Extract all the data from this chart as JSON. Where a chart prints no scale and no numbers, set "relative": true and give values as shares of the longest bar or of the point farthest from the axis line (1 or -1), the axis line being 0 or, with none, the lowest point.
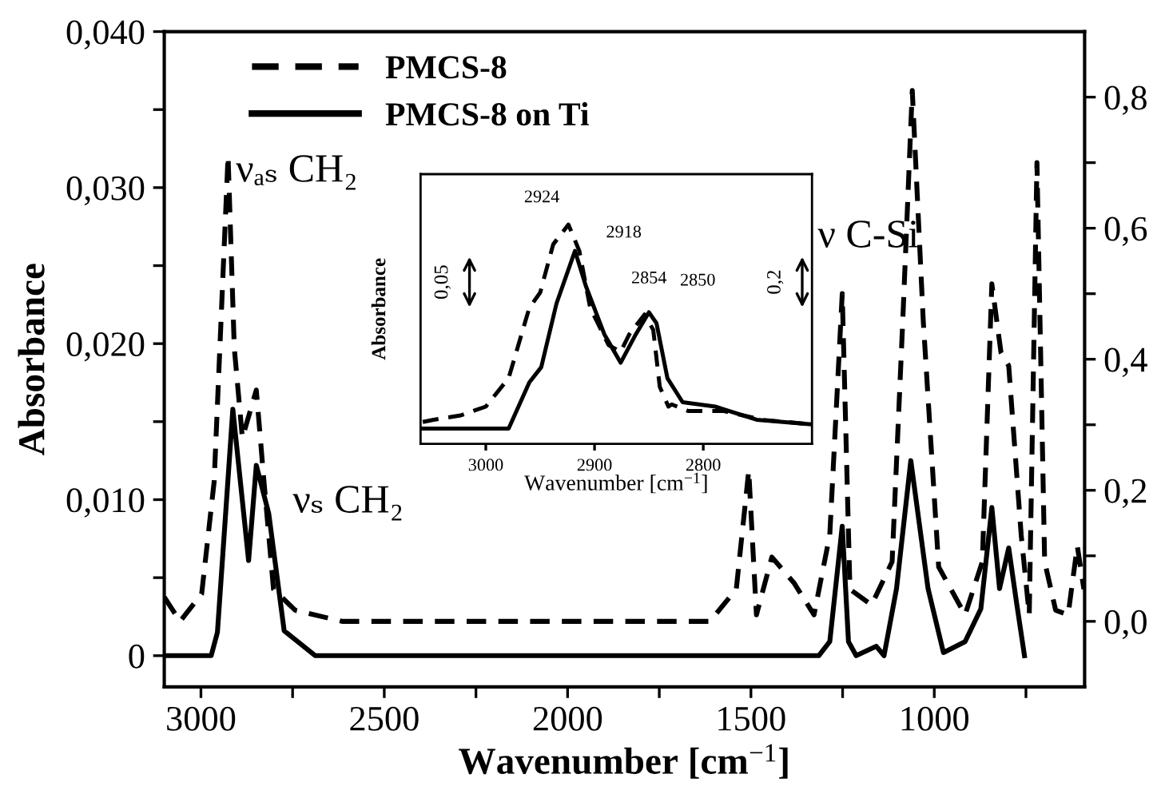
{
  "chart_data": [
    {
      "type": "line",
      "xlabel": "Wavenumber [cm$^{−1}$]",
      "ylabel": "Absorbance",
      "legend": "top left",
      "grid": false,
      "xlim": [
        3100,
        590
      ],
      "xticks": [
        {
          "value": 3000,
          "label": "3000"
        },
        {
          "value": 2750,
          "label": null
        },
        {
          "value": 2500,
          "label": "2500"
        },
        {
          "value": 2250,
          "label": null
        },
        {
          "value": 2000,
          "label": "2000"
        },
        {
          "value": 1750,
          "label": null
        },
        {
          "value": 1500,
          "label": "1500"
        },
        {
          "value": 1250,
          "label": null
        },
        {
          "value": 1000,
          "label": "1000"
        },
        {
          "value": 750,
          "label": null
        }
      ],
      "ylim": [
        -0.002,
        0.04
      ],
      "yticks": [
        {
          "value": 0,
          "label": "0"
        },
        {
          "value": 0.005,
          "label": null
        },
        {
          "value": 0.01,
          "label": "0,010"
        },
        {
          "value": 0.015,
          "label": null
        },
        {
          "value": 0.02,
          "label": "0,020"
        },
        {
          "value": 0.025,
          "label": null
        },
        {
          "value": 0.03,
          "label": "0,030"
        },
        {
          "value": 0.035,
          "label": null
        },
        {
          "value": 0.04,
          "label": "0,040"
        }
      ],
      "y2lim": [
        -0.1,
        0.9
      ],
      "y2ticks": [
        {
          "value": 0.0,
          "label": "0,0"
        },
        {
          "value": 0.1,
          "label": null
        },
        {
          "value": 0.2,
          "label": "0,2"
        },
        {
          "value": 0.3,
          "label": null
        },
        {
          "value": 0.4,
          "label": "0,4"
        },
        {
          "value": 0.5,
          "label": null
        },
        {
          "value": 0.6,
          "label": "0,6"
        },
        {
          "value": 0.7,
          "label": null
        },
        {
          "value": 0.8,
          "label": "0,8"
        }
      ],
      "annotations": [
        "νₐₛ CH₂",
        "νₛ CH₂",
        "ν C-Si"
      ],
      "series": [
        {
          "name": "PMCS-8",
          "color": "#000000",
          "line_style": "dashed",
          "axis": "y2",
          "x": [
            3100,
            3057,
            2998,
            2964,
            2926,
            2909,
            2887,
            2849,
            2828,
            2802,
            2743,
            2615,
            1612,
            1540,
            1506,
            1485,
            1443,
            1383,
            1328,
            1285,
            1251,
            1230,
            1171,
            1115,
            1086,
            1060,
            1030,
            988,
            916,
            869,
            843,
            818,
            797,
            763,
            741,
            720,
            699,
            669,
            635,
            610,
            592
          ],
          "values": [
            0.037,
            0.0,
            0.042,
            0.213,
            0.71,
            0.417,
            0.28,
            0.353,
            0.213,
            0.049,
            0.017,
            0.0,
            0.0,
            0.049,
            0.23,
            0.01,
            0.098,
            0.059,
            0.01,
            0.132,
            0.5,
            0.049,
            0.025,
            0.091,
            0.458,
            0.81,
            0.458,
            0.083,
            0.01,
            0.091,
            0.515,
            0.41,
            0.39,
            0.132,
            0.01,
            0.7,
            0.091,
            0.017,
            0.01,
            0.115,
            0.049
          ]
        },
        {
          "name": "PMCS-8 on Ti",
          "color": "#000000",
          "line_style": "solid",
          "x": [
            3100,
            2972,
            2955,
            2913,
            2870,
            2849,
            2815,
            2773,
            2688,
            1315,
            1285,
            1251,
            1234,
            1213,
            1158,
            1137,
            1103,
            1064,
            1017,
            975,
            916,
            873,
            843,
            822,
            797,
            775,
            754
          ],
          "values": [
            0.0,
            0.0,
            0.0015,
            0.0158,
            0.0061,
            0.0122,
            0.0091,
            0.0016,
            0.0,
            0.0,
            0.0009,
            0.0083,
            0.0009,
            0.0,
            0.0006,
            0.0,
            0.0043,
            0.0125,
            0.0043,
            0.0002,
            0.0009,
            0.003,
            0.0095,
            0.0043,
            0.0069,
            0.0033,
            0.0
          ]
        }
      ]
    },
    {
      "type": "line",
      "xlabel": "Wavenumber [cm$^{−1}$]",
      "ylabel": "Absorbance",
      "relative": true,
      "xlim": [
        3060,
        2700
      ],
      "xticks": [
        3000,
        2900,
        2800
      ],
      "annotations": [
        {
          "text": "2924",
          "x": 2924,
          "y": 1.0
        },
        {
          "text": "2918",
          "x": 2918,
          "y": 0.88
        },
        {
          "text": "2854",
          "x": 2854,
          "y": 0.59
        },
        {
          "text": "2850",
          "x": 2850,
          "y": 0.6
        },
        "0,05",
        "0,2"
      ],
      "series": [
        {
          "color": "#000000",
          "line_style": "dashed",
          "x": [
            3058,
            3048,
            3023,
            3000,
            2979,
            2960,
            2950,
            2938,
            2924,
            2914,
            2904,
            2887,
            2876,
            2868,
            2854,
            2846,
            2840,
            2832,
            2829,
            2814,
            2781,
            2746,
            2702
          ],
          "values": [
            0.1,
            0.11,
            0.13,
            0.17,
            0.3,
            0.62,
            0.69,
            0.91,
            1.0,
            0.88,
            0.62,
            0.45,
            0.42,
            0.5,
            0.59,
            0.52,
            0.26,
            0.17,
            0.18,
            0.15,
            0.15,
            0.11,
            0.09
          ]
        },
        {
          "color": "#000000",
          "line_style": "solid",
          "x": [
            3058,
            2979,
            2960,
            2949,
            2935,
            2918,
            2908,
            2891,
            2876,
            2862,
            2850,
            2843,
            2833,
            2819,
            2789,
            2751,
            2702
          ],
          "values": [
            0.07,
            0.07,
            0.28,
            0.35,
            0.64,
            0.88,
            0.72,
            0.5,
            0.37,
            0.5,
            0.6,
            0.55,
            0.3,
            0.19,
            0.17,
            0.11,
            0.09
          ]
        }
      ]
    }
  ]
}
